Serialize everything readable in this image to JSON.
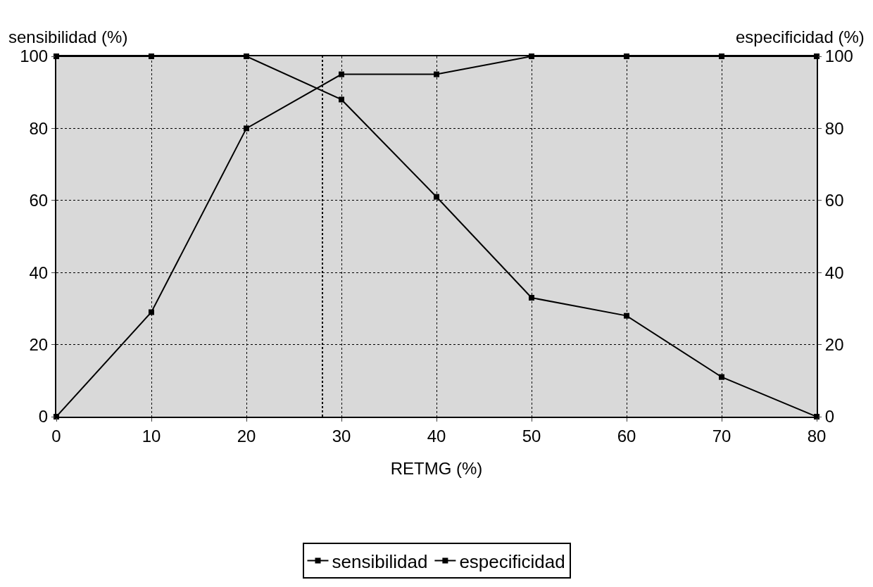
{
  "chart_data": {
    "type": "line",
    "xlabel": "RETMG (%)",
    "ylabel": "sensibilidad (%)",
    "y2label": "especificidad (%)",
    "x": [
      0,
      10,
      20,
      30,
      40,
      50,
      60,
      70,
      80
    ],
    "series": [
      {
        "name": "sensibilidad",
        "color": "#000000",
        "values": [
          100,
          100,
          100,
          88,
          61,
          33,
          28,
          11,
          0
        ]
      },
      {
        "name": "especificidad",
        "color": "#000000",
        "axis": "y2",
        "values": [
          0,
          29,
          80,
          95,
          95,
          100,
          100,
          100,
          100
        ]
      }
    ],
    "xlim": [
      0,
      80
    ],
    "xticks": [
      0,
      10,
      20,
      30,
      40,
      50,
      60,
      70,
      80
    ],
    "ylim": [
      0,
      100
    ],
    "yticks": [
      0,
      20,
      40,
      60,
      80,
      100
    ],
    "y2lim": [
      0,
      100
    ],
    "y2ticks": [
      0,
      20,
      40,
      60,
      80,
      100
    ],
    "ref_lines": [
      {
        "axis": "x",
        "value": 28,
        "color": "#000000",
        "line_style": "dotted"
      }
    ],
    "grid": true,
    "legend": "bottom",
    "marker": "square",
    "line_style": "solid"
  }
}
